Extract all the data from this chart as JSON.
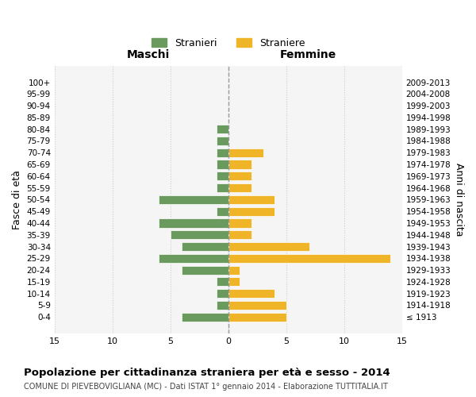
{
  "age_groups": [
    "100+",
    "95-99",
    "90-94",
    "85-89",
    "80-84",
    "75-79",
    "70-74",
    "65-69",
    "60-64",
    "55-59",
    "50-54",
    "45-49",
    "40-44",
    "35-39",
    "30-34",
    "25-29",
    "20-24",
    "15-19",
    "10-14",
    "5-9",
    "0-4"
  ],
  "birth_years": [
    "≤ 1913",
    "1914-1918",
    "1919-1923",
    "1924-1928",
    "1929-1933",
    "1934-1938",
    "1939-1943",
    "1944-1948",
    "1949-1953",
    "1954-1958",
    "1959-1963",
    "1964-1968",
    "1969-1973",
    "1974-1978",
    "1979-1983",
    "1984-1988",
    "1989-1993",
    "1994-1998",
    "1999-2003",
    "2004-2008",
    "2009-2013"
  ],
  "stranieri": [
    0,
    0,
    0,
    0,
    1,
    1,
    1,
    1,
    1,
    1,
    6,
    1,
    6,
    5,
    4,
    6,
    4,
    1,
    1,
    1,
    4
  ],
  "straniere": [
    0,
    0,
    0,
    0,
    0,
    0,
    3,
    2,
    2,
    2,
    4,
    4,
    2,
    2,
    7,
    14,
    1,
    1,
    4,
    5,
    5
  ],
  "color_stranieri": "#6b9a5e",
  "color_straniere": "#f0b429",
  "xlim": 15,
  "title": "Popolazione per cittadinanza straniera per età e sesso - 2014",
  "subtitle": "COMUNE DI PIEVEBOVIGLIANA (MC) - Dati ISTAT 1° gennaio 2014 - Elaborazione TUTTITALIA.IT",
  "xlabel_left": "Maschi",
  "xlabel_right": "Femmine",
  "ylabel_left": "Fasce di età",
  "ylabel_right": "Anni di nascita",
  "legend_stranieri": "Stranieri",
  "legend_straniere": "Straniere",
  "bg_color": "#f5f5f5",
  "grid_color": "#cccccc"
}
